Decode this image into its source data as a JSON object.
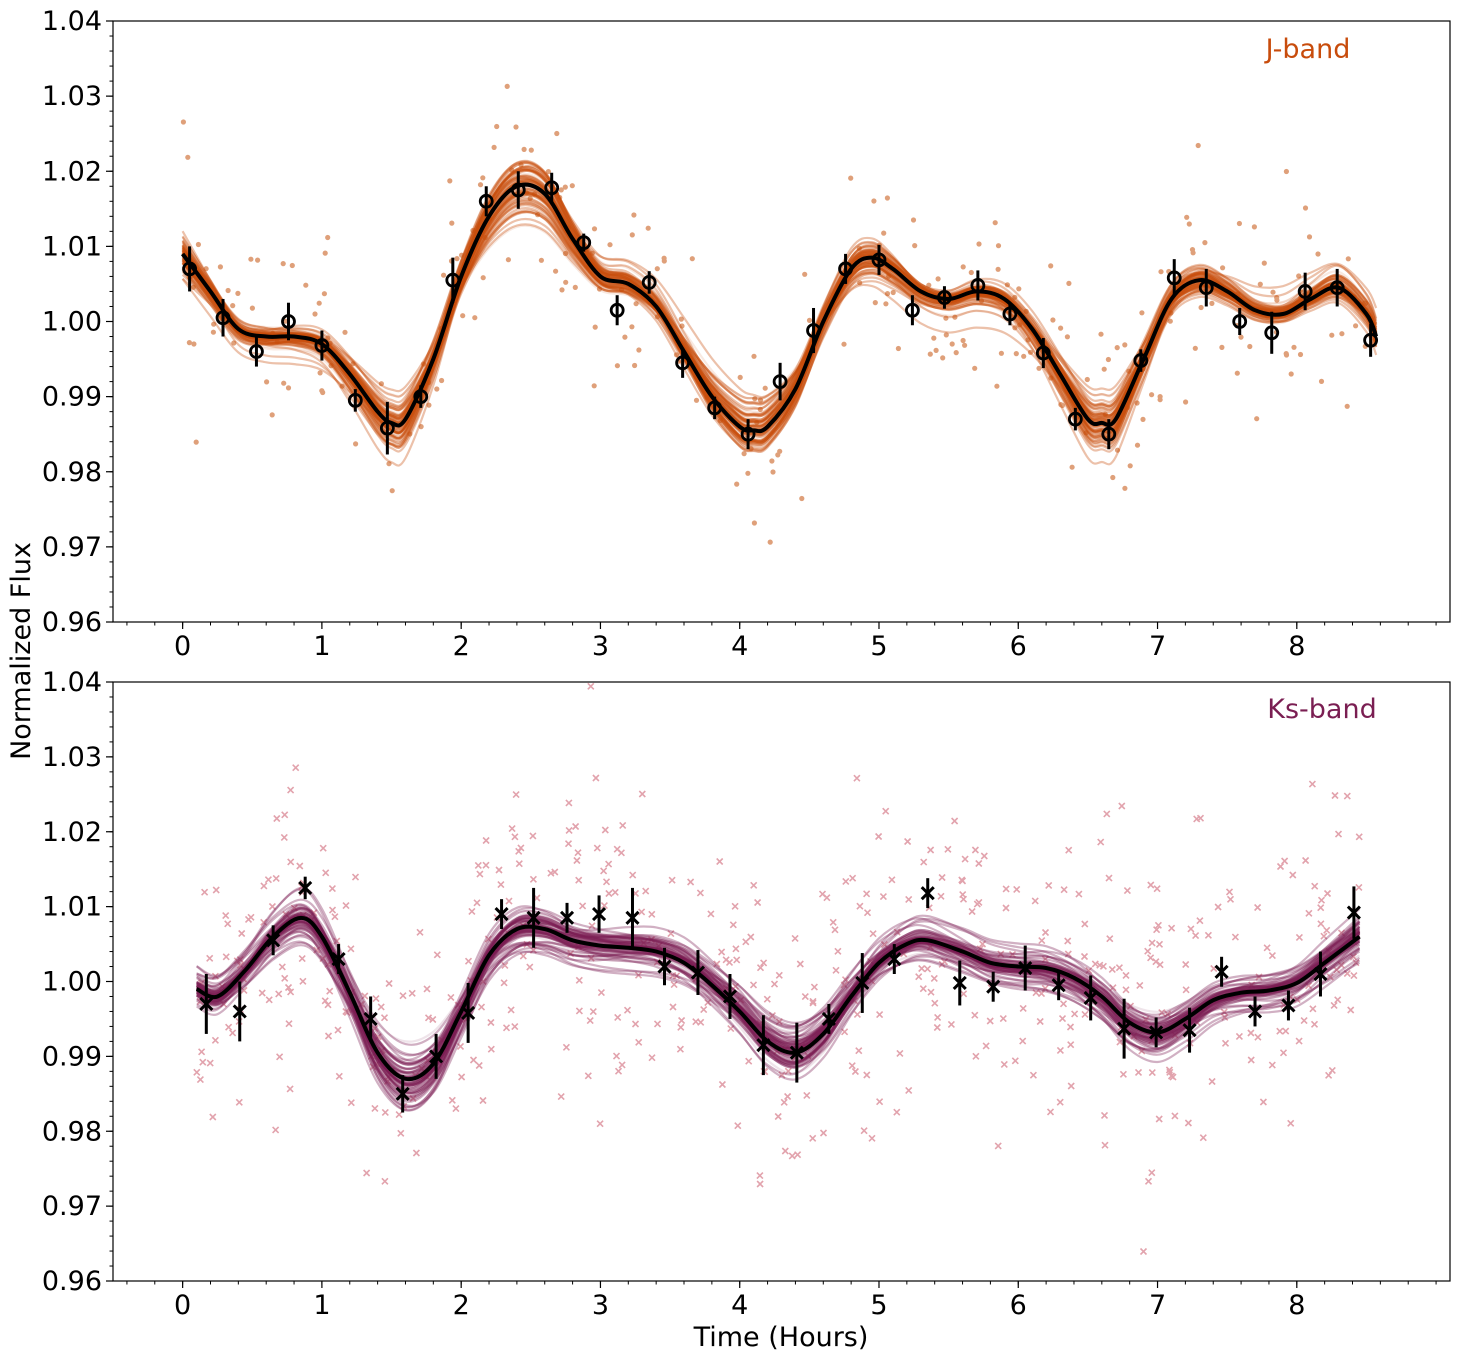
{
  "figure": {
    "ylabel": "Normalized Flux",
    "xlabel": "Time (Hours)"
  },
  "chart_data": [
    {
      "type": "scatter",
      "panel": "top",
      "band_label": "J-band",
      "band_color": "#c84c0c",
      "raw_point_color": "#dfa07a",
      "xlim": [
        -0.5,
        9.1
      ],
      "ylim": [
        0.96,
        1.04
      ],
      "xticks": [
        0,
        1,
        2,
        3,
        4,
        5,
        6,
        7,
        8
      ],
      "xtick_labels": [
        "0",
        "1",
        "2",
        "3",
        "4",
        "5",
        "6",
        "7",
        "8"
      ],
      "yticks": [
        0.96,
        0.97,
        0.98,
        0.99,
        1.0,
        1.01,
        1.02,
        1.03,
        1.04
      ],
      "ytick_labels": [
        "0.96",
        "0.97",
        "0.98",
        "0.99",
        "1.00",
        "1.01",
        "1.02",
        "1.03",
        "1.04"
      ],
      "model_x": [
        0.0,
        0.2,
        0.4,
        0.6,
        0.8,
        1.0,
        1.2,
        1.4,
        1.5,
        1.6,
        1.8,
        2.0,
        2.2,
        2.4,
        2.6,
        2.8,
        3.0,
        3.2,
        3.4,
        3.6,
        3.8,
        4.0,
        4.1,
        4.2,
        4.4,
        4.6,
        4.8,
        4.95,
        5.1,
        5.3,
        5.5,
        5.7,
        5.9,
        6.1,
        6.3,
        6.5,
        6.6,
        6.7,
        6.9,
        7.1,
        7.3,
        7.5,
        7.7,
        7.9,
        8.1,
        8.3,
        8.5,
        8.57
      ],
      "model_y": [
        1.009,
        1.004,
        0.999,
        0.998,
        0.998,
        0.997,
        0.993,
        0.988,
        0.9865,
        0.987,
        0.995,
        1.006,
        1.014,
        1.018,
        1.017,
        1.011,
        1.006,
        1.005,
        1.002,
        0.996,
        0.99,
        0.986,
        0.9855,
        0.986,
        0.991,
        1.0,
        1.007,
        1.0085,
        1.007,
        1.004,
        1.003,
        1.004,
        1.003,
        0.999,
        0.993,
        0.987,
        0.9865,
        0.987,
        0.995,
        1.003,
        1.0055,
        1.004,
        1.0015,
        1.001,
        1.003,
        1.0045,
        1.001,
        0.998
      ],
      "binned": {
        "marker": "open-circle",
        "x": [
          0.05,
          0.29,
          0.53,
          0.76,
          1.0,
          1.24,
          1.47,
          1.71,
          1.94,
          2.18,
          2.41,
          2.65,
          2.88,
          3.12,
          3.35,
          3.59,
          3.82,
          4.06,
          4.29,
          4.53,
          4.76,
          5.0,
          5.24,
          5.47,
          5.71,
          5.94,
          6.18,
          6.41,
          6.65,
          6.88,
          7.12,
          7.35,
          7.59,
          7.82,
          8.06,
          8.29,
          8.53
        ],
        "y": [
          1.007,
          1.0005,
          0.996,
          1.0,
          0.9968,
          0.9895,
          0.9858,
          0.99,
          1.0055,
          1.016,
          1.0175,
          1.0178,
          1.0105,
          1.0015,
          1.0052,
          0.9945,
          0.9885,
          0.985,
          0.992,
          0.9988,
          1.007,
          1.0082,
          1.0015,
          1.0032,
          1.0048,
          1.001,
          0.9958,
          0.987,
          0.985,
          0.9948,
          1.0058,
          1.0045,
          1.0,
          0.9985,
          1.004,
          1.0045,
          0.9975
        ],
        "yerr": [
          0.003,
          0.0025,
          0.002,
          0.0025,
          0.002,
          0.0015,
          0.0035,
          0.0015,
          0.003,
          0.002,
          0.0025,
          0.002,
          0.0012,
          0.002,
          0.0015,
          0.002,
          0.0015,
          0.002,
          0.0025,
          0.003,
          0.002,
          0.002,
          0.002,
          0.0015,
          0.002,
          0.0015,
          0.002,
          0.0015,
          0.002,
          0.0015,
          0.0025,
          0.0025,
          0.0018,
          0.0028,
          0.0025,
          0.0025,
          0.0022
        ]
      }
    },
    {
      "type": "scatter",
      "panel": "bottom",
      "band_label": "Ks-band",
      "band_color": "#7a1e52",
      "raw_point_color": "#e2a3ad",
      "xlim": [
        -0.5,
        9.1
      ],
      "ylim": [
        0.96,
        1.04
      ],
      "xticks": [
        0,
        1,
        2,
        3,
        4,
        5,
        6,
        7,
        8
      ],
      "xtick_labels": [
        "0",
        "1",
        "2",
        "3",
        "4",
        "5",
        "6",
        "7",
        "8"
      ],
      "yticks": [
        0.96,
        0.97,
        0.98,
        0.99,
        1.0,
        1.01,
        1.02,
        1.03,
        1.04
      ],
      "ytick_labels": [
        "0.96",
        "0.97",
        "0.98",
        "0.99",
        "1.00",
        "1.01",
        "1.02",
        "1.03",
        "1.04"
      ],
      "model_x": [
        0.1,
        0.25,
        0.45,
        0.65,
        0.85,
        1.0,
        1.2,
        1.4,
        1.6,
        1.8,
        2.0,
        2.2,
        2.4,
        2.6,
        2.8,
        3.0,
        3.2,
        3.4,
        3.6,
        3.8,
        4.0,
        4.2,
        4.4,
        4.6,
        4.8,
        5.0,
        5.2,
        5.35,
        5.6,
        5.8,
        6.0,
        6.2,
        6.4,
        6.6,
        6.8,
        7.0,
        7.2,
        7.4,
        7.6,
        7.8,
        8.0,
        8.2,
        8.45
      ],
      "model_y": [
        0.999,
        0.998,
        1.0015,
        1.006,
        1.0085,
        1.006,
        0.9985,
        0.9905,
        0.987,
        0.989,
        0.996,
        1.0035,
        1.007,
        1.007,
        1.0055,
        1.0048,
        1.0045,
        1.004,
        1.0025,
        0.9995,
        0.996,
        0.992,
        0.9905,
        0.993,
        0.998,
        1.0025,
        1.005,
        1.0055,
        1.004,
        1.0025,
        1.002,
        1.0018,
        1.0005,
        0.998,
        0.9945,
        0.9932,
        0.995,
        0.9975,
        0.9985,
        0.9988,
        0.9998,
        1.0025,
        1.006
      ],
      "binned": {
        "marker": "x",
        "x": [
          0.17,
          0.41,
          0.65,
          0.88,
          1.12,
          1.35,
          1.58,
          1.82,
          2.05,
          2.29,
          2.52,
          2.76,
          2.99,
          3.23,
          3.46,
          3.7,
          3.93,
          4.17,
          4.41,
          4.64,
          4.88,
          5.11,
          5.35,
          5.58,
          5.82,
          6.05,
          6.29,
          6.52,
          6.76,
          6.99,
          7.23,
          7.46,
          7.7,
          7.94,
          8.17,
          8.41
        ],
        "y": [
          0.997,
          0.996,
          1.0055,
          1.0125,
          1.003,
          0.995,
          0.985,
          0.99,
          0.9958,
          1.009,
          1.0085,
          1.0085,
          1.009,
          1.0085,
          1.002,
          1.0012,
          0.998,
          0.9915,
          0.9905,
          0.995,
          0.9998,
          1.003,
          1.0118,
          0.9998,
          0.9993,
          1.0018,
          0.9995,
          0.9978,
          0.9937,
          0.9932,
          0.9935,
          1.0013,
          0.996,
          0.9968,
          1.001,
          1.0092
        ],
        "yerr": [
          0.004,
          0.004,
          0.002,
          0.0015,
          0.002,
          0.003,
          0.0025,
          0.003,
          0.004,
          0.002,
          0.004,
          0.002,
          0.0025,
          0.004,
          0.0025,
          0.003,
          0.003,
          0.004,
          0.004,
          0.002,
          0.004,
          0.002,
          0.002,
          0.003,
          0.002,
          0.003,
          0.002,
          0.003,
          0.004,
          0.002,
          0.003,
          0.002,
          0.002,
          0.002,
          0.003,
          0.0035
        ]
      }
    }
  ]
}
